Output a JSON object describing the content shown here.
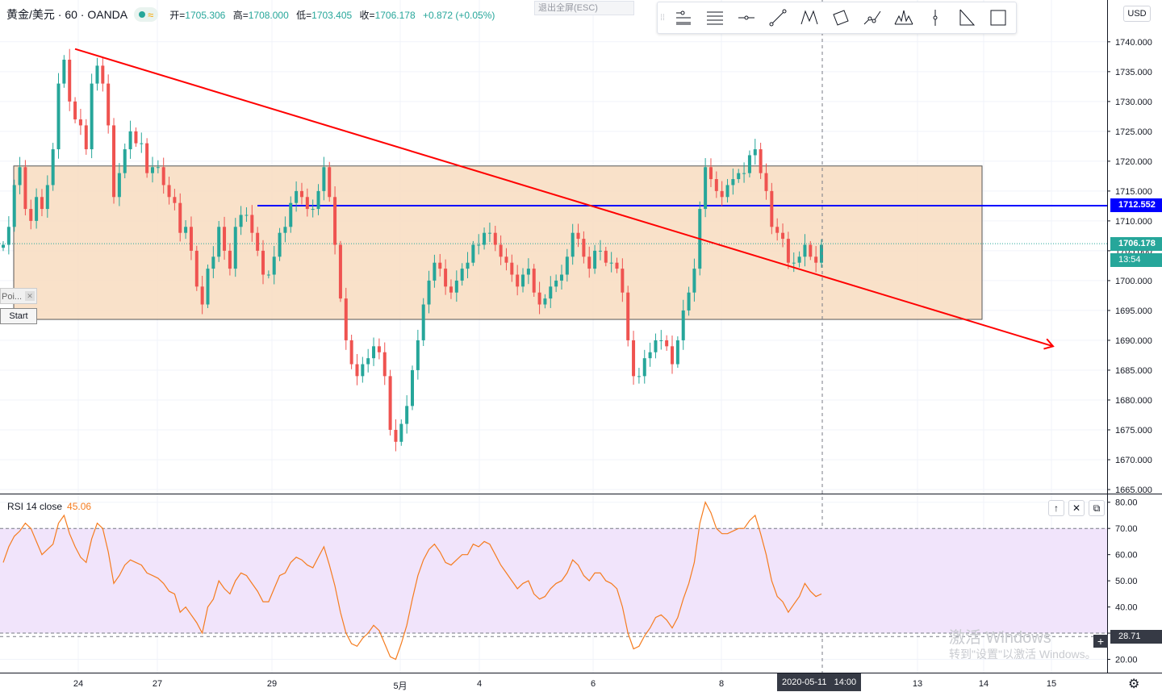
{
  "header": {
    "symbol": "黄金/美元 · 60 · OANDA",
    "ohlc": [
      {
        "label": "开=",
        "value": "1705.306"
      },
      {
        "label": "高=",
        "value": "1708.000"
      },
      {
        "label": "低=",
        "value": "1703.405"
      },
      {
        "label": "收=",
        "value": "1706.178"
      },
      {
        "label": "",
        "value": "+0.872 (+0.05%)"
      }
    ],
    "exit_fullscreen": "退出全屏(ESC)",
    "currency": "USD",
    "toolbar_icons": [
      "horizontal-ray-icon",
      "horizontal-lines-icon",
      "horizontal-line-icon",
      "trend-line-icon",
      "xabcd-pattern-icon",
      "rectangle-rotated-icon",
      "path-icon",
      "head-shoulders-icon",
      "vertical-line-icon",
      "triangle-pattern-icon",
      "rectangle-icon"
    ]
  },
  "colors": {
    "up": "#26a69a",
    "down": "#ef5350",
    "zone_fill": "#f8dcbf",
    "trend": "#ff0000",
    "level_line": "#0000ff",
    "rsi_line": "#f57c1f",
    "rsi_band": "#f1e4fb"
  },
  "price_axis": {
    "ticks": [
      "1740.000",
      "1735.000",
      "1730.000",
      "1725.000",
      "1720.000",
      "1715.000",
      "1710.000",
      "1705.000",
      "1700.000",
      "1695.000",
      "1690.000",
      "1685.000",
      "1680.000",
      "1675.000",
      "1670.000",
      "1665.000"
    ],
    "level_tag": "1712.552",
    "last_tag": "1706.178",
    "countdown": "13:54"
  },
  "time_axis": {
    "labels": [
      "24",
      "27",
      "29",
      "5月",
      "4",
      "6",
      "8",
      "13",
      "14",
      "15"
    ],
    "crosshair_date": "2020-05-11",
    "crosshair_time": "14:00"
  },
  "rsi": {
    "label": "RSI 14 close",
    "value": "45.06",
    "ticks": [
      "80.00",
      "70.00",
      "60.00",
      "50.00",
      "40.00",
      "30.00",
      "20.00"
    ],
    "hover_value": "28.71"
  },
  "overlay": {
    "poi_label": "Poi...",
    "start_label": "Start"
  },
  "watermark": {
    "line1": "激活 Windows",
    "line2": "转到\"设置\"以激活 Windows。"
  },
  "chart_data": {
    "type": "candlestick",
    "symbol": "XAUUSD",
    "interval": "60",
    "y_range": [
      1665,
      1742
    ],
    "zone": {
      "top": 1719.2,
      "bottom": 1693.5
    },
    "horizontal_level": 1712.552,
    "last_price": 1706.178,
    "trendline": {
      "from_price": 1738.8,
      "to_price": 1689.0
    },
    "rsi_levels": {
      "upper": 70,
      "lower": 30
    },
    "rsi_range": [
      18,
      83
    ],
    "close_path": [
      1706,
      1709,
      1716,
      1719,
      1712,
      1710,
      1714,
      1712,
      1716,
      1722,
      1733,
      1737,
      1730,
      1727,
      1726,
      1722,
      1733,
      1736,
      1733,
      1726,
      1714,
      1718,
      1722,
      1725,
      1723,
      1723,
      1718,
      1719,
      1719,
      1716,
      1714,
      1713,
      1708,
      1709,
      1705,
      1699,
      1696,
      1702,
      1704,
      1709,
      1705,
      1702,
      1709,
      1711,
      1711,
      1708,
      1705,
      1701,
      1701,
      1704,
      1708,
      1709,
      1713,
      1715,
      1714,
      1712,
      1712,
      1715,
      1719,
      1714,
      1706,
      1697,
      1690,
      1686,
      1684,
      1686,
      1687,
      1689,
      1688,
      1684,
      1675,
      1673,
      1676,
      1679,
      1685,
      1690,
      1696,
      1700,
      1703,
      1702,
      1699,
      1698,
      1700,
      1702,
      1703,
      1706,
      1706,
      1708,
      1708,
      1706,
      1704,
      1703,
      1701,
      1699,
      1701,
      1702,
      1698,
      1696,
      1697,
      1699,
      1700,
      1701,
      1704,
      1708,
      1707,
      1704,
      1702,
      1705,
      1705,
      1703,
      1703,
      1702,
      1698,
      1690,
      1684,
      1684,
      1687,
      1688,
      1690,
      1690,
      1689,
      1686,
      1690,
      1695,
      1698,
      1702,
      1712,
      1719,
      1717,
      1715,
      1714,
      1716,
      1717,
      1718,
      1718,
      1721,
      1722,
      1718,
      1715,
      1709,
      1708,
      1707,
      1703,
      1703,
      1704,
      1706,
      1704,
      1703,
      1706
    ],
    "rsi_path": [
      57,
      63,
      67,
      69,
      72,
      70,
      65,
      60,
      62,
      64,
      72,
      75,
      68,
      63,
      59,
      57,
      66,
      72,
      70,
      61,
      49,
      52,
      56,
      58,
      57,
      56,
      53,
      52,
      51,
      49,
      46,
      45,
      38,
      40,
      37,
      34,
      30,
      40,
      43,
      50,
      47,
      45,
      50,
      53,
      52,
      49,
      46,
      42,
      42,
      47,
      52,
      53,
      57,
      59,
      58,
      56,
      55,
      59,
      63,
      56,
      48,
      38,
      30,
      26,
      25,
      28,
      30,
      33,
      31,
      26,
      21,
      20,
      26,
      33,
      43,
      52,
      58,
      62,
      64,
      61,
      57,
      56,
      58,
      60,
      60,
      64,
      63,
      65,
      64,
      60,
      56,
      53,
      50,
      47,
      49,
      50,
      45,
      43,
      44,
      47,
      49,
      50,
      53,
      58,
      56,
      52,
      50,
      53,
      53,
      50,
      49,
      47,
      40,
      30,
      24,
      25,
      29,
      32,
      36,
      37,
      35,
      32,
      36,
      43,
      49,
      57,
      72,
      80,
      76,
      70,
      68,
      68,
      69,
      70,
      70,
      73,
      75,
      68,
      60,
      50,
      44,
      42,
      38,
      41,
      44,
      49,
      46,
      44,
      45
    ]
  }
}
